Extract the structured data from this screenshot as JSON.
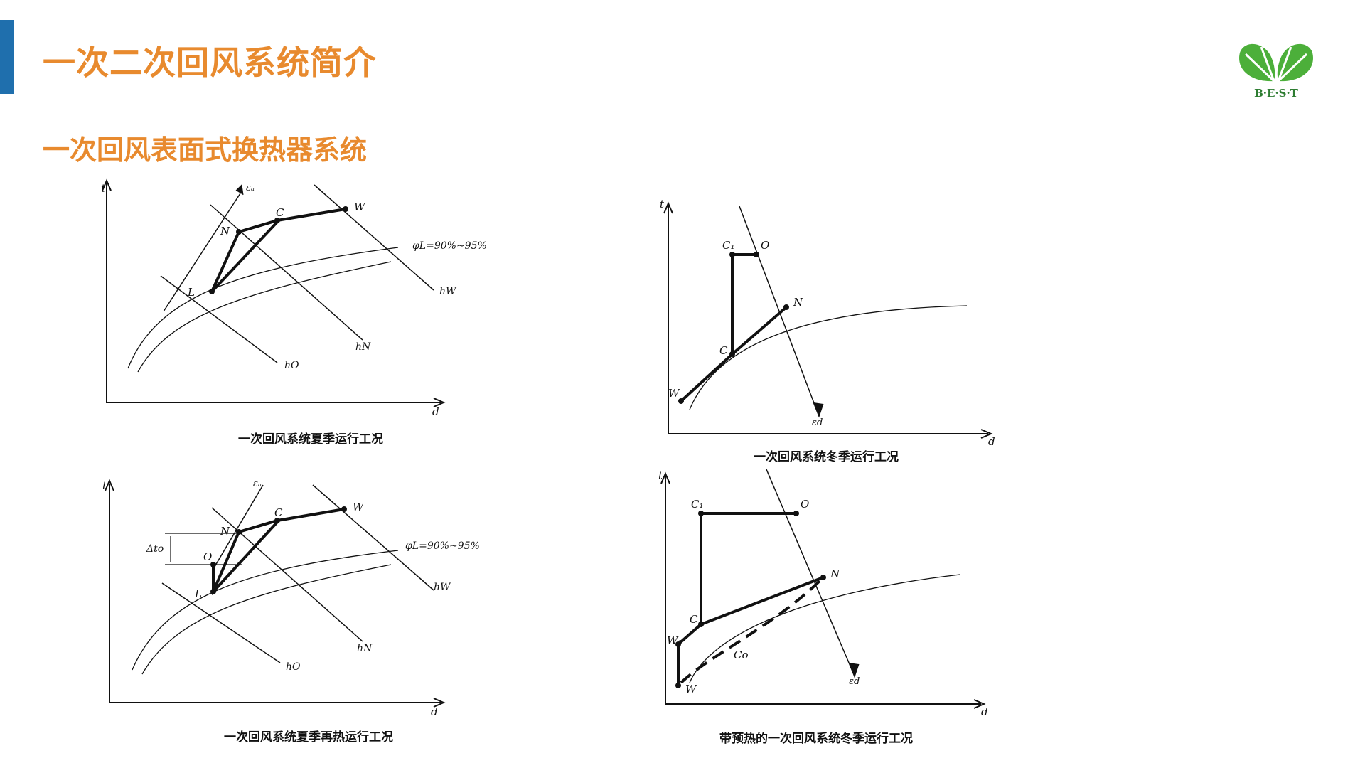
{
  "header": {
    "title": "一次二次回风系统简介",
    "subtitle": "一次回风表面式换热器系统",
    "logo_text": "B·E·S·T"
  },
  "colors": {
    "accent_bar": "#1f6fad",
    "title": "#e88a2e",
    "logo_green": "#4caf3a"
  },
  "diagrams": [
    {
      "caption": "一次回风系统夏季运行工况",
      "labels": {
        "t": "t",
        "d": "d",
        "eps": "εₐ",
        "C": "C",
        "W": "W",
        "N": "N",
        "L": "L",
        "phi": "φL=90%~95%",
        "hW": "hW",
        "hN": "hN",
        "hO": "hO"
      }
    },
    {
      "caption": "一次回风系统冬季运行工况",
      "labels": {
        "t": "t",
        "d": "d",
        "C1": "C₁",
        "O": "O",
        "N": "N",
        "C": "C",
        "W": "W",
        "eps": "εd"
      }
    },
    {
      "caption": "一次回风系统夏季再热运行工况",
      "labels": {
        "t": "t",
        "d": "d",
        "eps": "εₐ",
        "C": "C",
        "W": "W",
        "N": "N",
        "O": "O",
        "L": "L",
        "dt": "Δto",
        "phi": "φL=90%~95%",
        "hW": "hW",
        "hN": "hN",
        "hO": "hO"
      }
    },
    {
      "caption": "带预热的一次回风系统冬季运行工况",
      "labels": {
        "t": "t",
        "d": "d",
        "C1": "C₁",
        "O": "O",
        "N": "N",
        "C": "C",
        "W1": "W₁",
        "Co": "Co",
        "W": "W",
        "eps": "εd"
      }
    }
  ]
}
